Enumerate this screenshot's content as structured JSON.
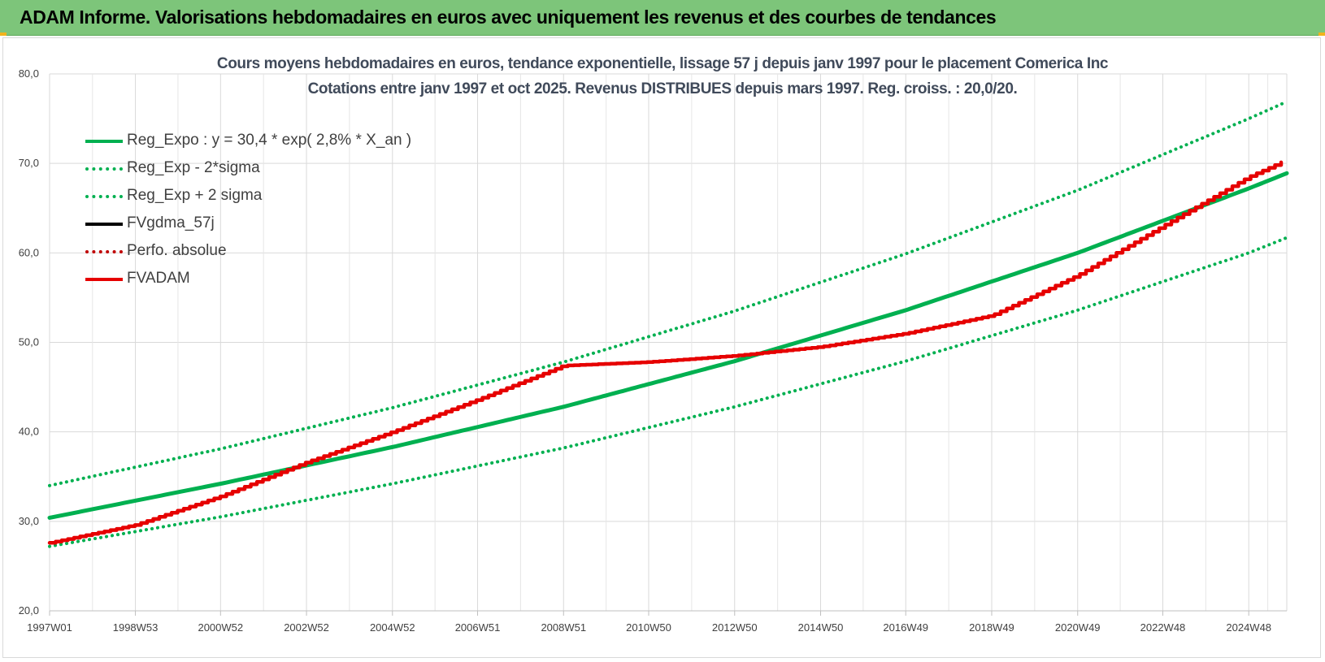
{
  "header": {
    "title": "ADAM Informe. Valorisations hebdomadaires en euros avec uniquement les revenus et des courbes de tendances"
  },
  "colors": {
    "header_bg": "#7dc57a",
    "green": "#00b050",
    "red": "#e60000",
    "black": "#000000",
    "dark_red": "#c00000"
  },
  "chart_data": {
    "type": "line",
    "title": "Cours moyens hebdomadaires en euros, tendance exponentielle, lissage 57 j depuis janv 1997 pour le placement Comerica Inc",
    "subtitle": "Cotations entre janv 1997 et oct 2025. Revenus DISTRIBUES depuis mars 1997. Reg. croiss. : 20,0/20.",
    "xlabel": "",
    "ylabel": "",
    "ylim": [
      20,
      80
    ],
    "yticks": [
      "20,0",
      "30,0",
      "40,0",
      "50,0",
      "60,0",
      "70,0",
      "80,0"
    ],
    "xticks": [
      "1997W01",
      "1998W53",
      "2000W52",
      "2002W52",
      "2004W52",
      "2006W51",
      "2008W51",
      "2010W50",
      "2012W50",
      "2014W50",
      "2016W49",
      "2018W49",
      "2020W49",
      "2022W48",
      "2024W48"
    ],
    "x_range": [
      "1997W01",
      "2025W42"
    ],
    "grid": true,
    "legend_position": "top-left",
    "series": [
      {
        "name": "Reg_Expo : y = 30,4 * exp( 2,8% *  X_an )",
        "color": "#00b050",
        "style": "solid",
        "x": [
          "1997W01",
          "2000W52",
          "2004W52",
          "2008W51",
          "2012W50",
          "2016W49",
          "2020W49",
          "2024W48",
          "2025W42"
        ],
        "values": [
          30.4,
          34.2,
          38.3,
          42.8,
          47.9,
          53.6,
          60.0,
          67.2,
          68.9
        ]
      },
      {
        "name": "Reg_Exp - 2*sigma",
        "color": "#00b050",
        "style": "dotted",
        "x": [
          "1997W01",
          "2000W52",
          "2004W52",
          "2008W51",
          "2012W50",
          "2016W49",
          "2020W49",
          "2024W48",
          "2025W42"
        ],
        "values": [
          27.2,
          30.5,
          34.2,
          38.2,
          42.8,
          47.9,
          53.6,
          60.0,
          61.7
        ]
      },
      {
        "name": "Reg_Exp + 2 sigma",
        "color": "#00b050",
        "style": "dotted",
        "x": [
          "1997W01",
          "2000W52",
          "2004W52",
          "2008W51",
          "2012W50",
          "2016W49",
          "2020W49",
          "2024W48",
          "2025W42"
        ],
        "values": [
          34.0,
          38.1,
          42.7,
          47.8,
          53.5,
          59.9,
          67.0,
          75.0,
          76.9
        ]
      },
      {
        "name": "FVgdma_57j",
        "color": "#000000",
        "style": "solid",
        "x": [],
        "values": []
      },
      {
        "name": "Perfo. absolue",
        "color": "#c00000",
        "style": "dotted",
        "x": [],
        "values": []
      },
      {
        "name": "FVADAM",
        "color": "#e60000",
        "style": "stepped",
        "x": [
          "1997W01",
          "1998W53",
          "2000W52",
          "2002W52",
          "2004W52",
          "2006W51",
          "2008W51",
          "2010W50",
          "2012W50",
          "2014W50",
          "2016W49",
          "2018W49",
          "2020W49",
          "2022W48",
          "2024W48",
          "2025W42"
        ],
        "values": [
          27.6,
          29.6,
          32.8,
          36.6,
          40.0,
          43.6,
          47.4,
          47.8,
          48.5,
          49.5,
          51.0,
          53.0,
          57.5,
          63.0,
          68.5,
          70.4
        ]
      }
    ]
  }
}
